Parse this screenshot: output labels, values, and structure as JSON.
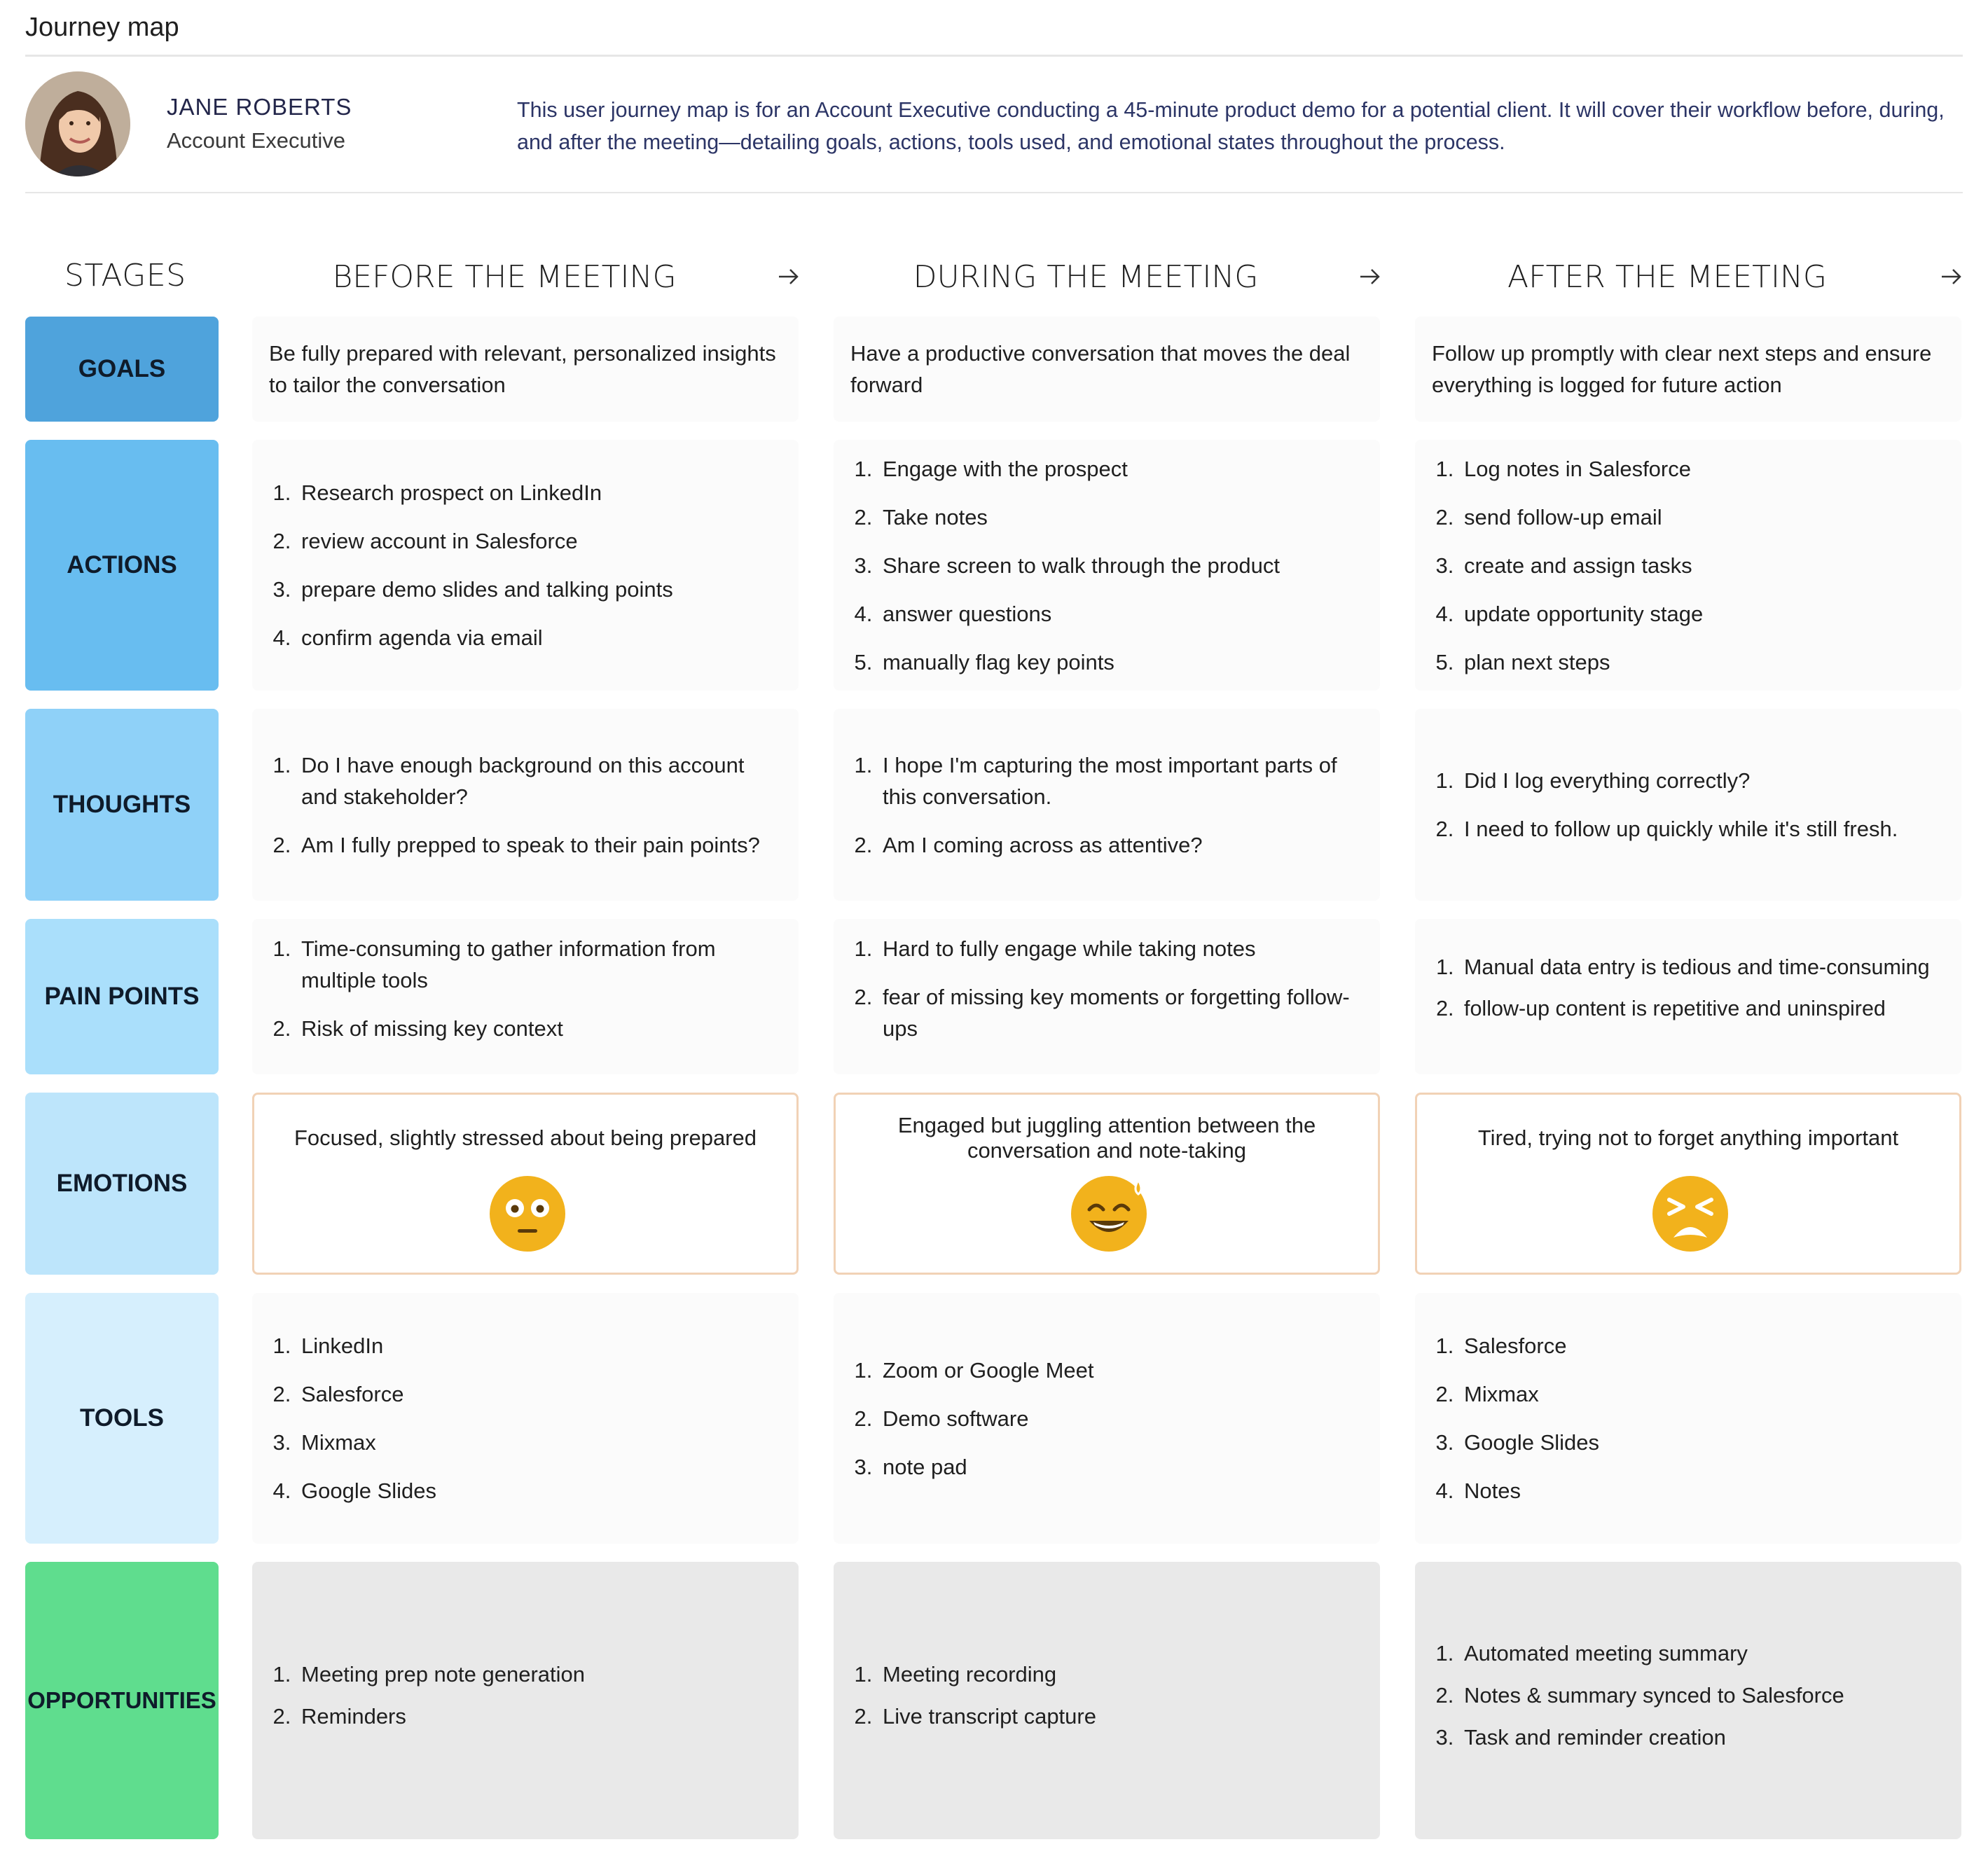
{
  "page": {
    "title": "Journey map"
  },
  "persona": {
    "name": "JANE ROBERTS",
    "role": "Account Executive",
    "description": "This user journey map is for an Account Executive conducting a 45-minute product demo for a potential client. It will cover their workflow before, during, and after the meeting—detailing goals, actions, tools used, and emotional states throughout the process."
  },
  "stages_label": "STAGES",
  "columns": [
    {
      "title": "BEFORE THE MEETING"
    },
    {
      "title": "DURING THE MEETING"
    },
    {
      "title": "AFTER THE MEETING"
    }
  ],
  "rows": {
    "goals": {
      "label": "GOALS",
      "color": "#4fa3dc",
      "cells": [
        "Be fully prepared with relevant, personalized insights to tailor the conversation",
        "Have a productive conversation that moves the deal forward",
        "Follow up promptly with clear next steps and ensure everything is logged for future action"
      ]
    },
    "actions": {
      "label": "ACTIONS",
      "color": "#68bdf0",
      "cells": [
        [
          "Research prospect on LinkedIn",
          "review account in Salesforce",
          "prepare demo slides and talking points",
          "confirm agenda via email"
        ],
        [
          "Engage with the prospect",
          "Take notes",
          "Share screen to walk through the product",
          "answer questions",
          "manually flag key points"
        ],
        [
          "Log notes in Salesforce",
          "send follow-up email",
          "create and assign tasks",
          "update opportunity stage",
          "plan next steps"
        ]
      ]
    },
    "thoughts": {
      "label": "THOUGHTS",
      "color": "#8fd1f8",
      "cells": [
        [
          "Do I have enough background on this account and stakeholder?",
          "Am I fully prepped to speak to their pain points?"
        ],
        [
          "I hope I'm capturing the most important parts of this conversation.",
          "Am I coming across as attentive?"
        ],
        [
          "Did I log everything correctly?",
          "I need to follow up quickly while it's still fresh."
        ]
      ]
    },
    "pain_points": {
      "label": "PAIN POINTS",
      "color": "#aadffb",
      "cells": [
        [
          "Time-consuming to gather information from multiple tools",
          "Risk of missing key context"
        ],
        [
          "Hard to fully engage while taking notes",
          "fear of missing key moments or forgetting follow-ups"
        ],
        [
          "Manual data entry is tedious and time-consuming",
          "follow-up content is repetitive and uninspired"
        ]
      ]
    },
    "emotions": {
      "label": "EMOTIONS",
      "color": "#bde5fb",
      "cells": [
        {
          "text": "Focused, slightly stressed about being prepared",
          "icon": "neutral-face-icon"
        },
        {
          "text": "Engaged but juggling attention between the conversation and note-taking",
          "icon": "sweat-smile-face-icon"
        },
        {
          "text": "Tired, trying not to forget anything important",
          "icon": "tired-face-icon"
        }
      ]
    },
    "tools": {
      "label": "TOOLS",
      "color": "#d6effd",
      "cells": [
        [
          "LinkedIn",
          "Salesforce",
          "Mixmax",
          "Google Slides"
        ],
        [
          "Zoom or Google Meet",
          "Demo software",
          "note pad"
        ],
        [
          "Salesforce",
          "Mixmax",
          "Google Slides",
          "Notes"
        ]
      ]
    },
    "opportunities": {
      "label": "OPPORTUNITIES",
      "color": "#5fdd8e",
      "cells": [
        [
          "Meeting prep note generation",
          "Reminders"
        ],
        [
          "Meeting recording",
          "Live transcript capture"
        ],
        [
          "Automated meeting summary",
          "Notes & summary synced to Salesforce",
          "Task and reminder creation"
        ]
      ]
    }
  },
  "colors": {
    "emotion_border": "#f1d2b6",
    "emoji_yellow": "#f2b21c",
    "emoji_dark": "#5a3a0a"
  }
}
